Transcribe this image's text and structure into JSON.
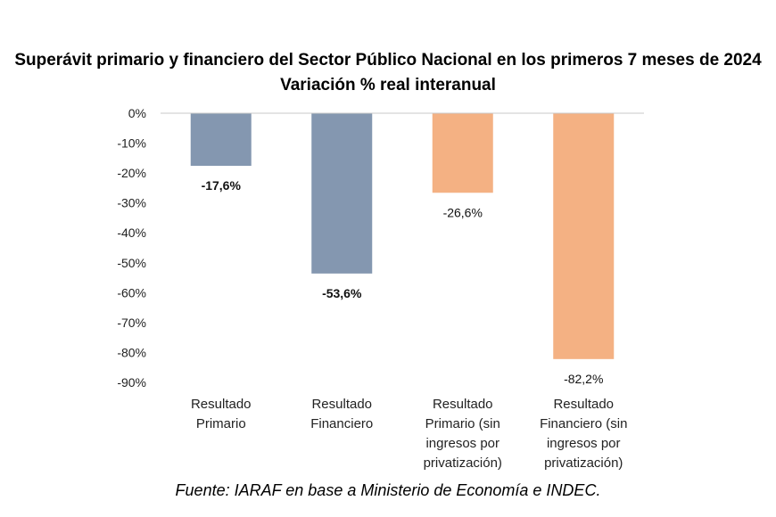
{
  "chart_data": {
    "type": "bar",
    "title": "Superávit primario y financiero del Sector Público Nacional en los primeros 7 meses de 2024",
    "subtitle": "Variación % real interanual",
    "categories": [
      [
        "Resultado",
        "Primario"
      ],
      [
        "Resultado",
        "Financiero"
      ],
      [
        "Resultado",
        "Primario (sin",
        "ingresos por",
        "privatización)"
      ],
      [
        "Resultado",
        "Financiero (sin",
        "ingresos por",
        "privatización)"
      ]
    ],
    "values": [
      -17.6,
      -53.6,
      -26.6,
      -82.2
    ],
    "data_labels": [
      "-17,6%",
      "-53,6%",
      "-26,6%",
      "-82,2%"
    ],
    "label_bold": [
      true,
      true,
      false,
      false
    ],
    "colors": [
      "#8497b0",
      "#8497b0",
      "#f4b183",
      "#f4b183"
    ],
    "ylim": [
      -90,
      0
    ],
    "yticks": [
      0,
      -10,
      -20,
      -30,
      -40,
      -50,
      -60,
      -70,
      -80,
      -90
    ],
    "ytick_labels": [
      "0%",
      "-10%",
      "-20%",
      "-30%",
      "-40%",
      "-50%",
      "-60%",
      "-70%",
      "-80%",
      "-90%"
    ],
    "grid": false
  },
  "source": "Fuente: IARAF en base a Ministerio de Economía e INDEC."
}
